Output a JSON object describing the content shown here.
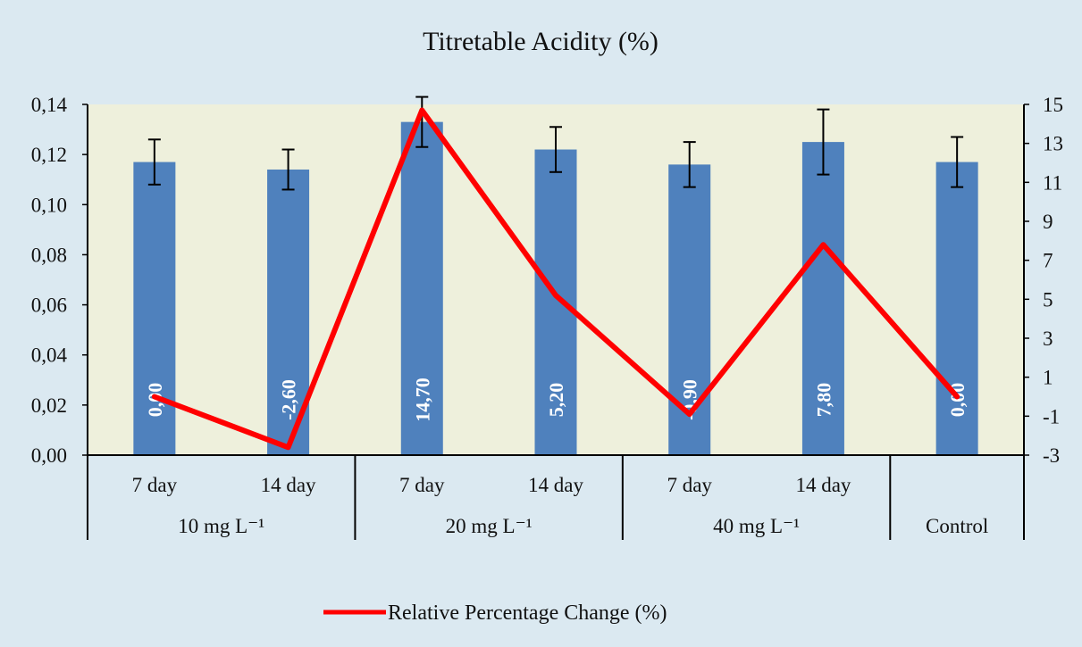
{
  "chart_data": {
    "type": "bar",
    "title": "Titretable Acidity (%)",
    "categories": [
      {
        "sub": "7 day",
        "group": "10 mg L⁻¹"
      },
      {
        "sub": "14 day",
        "group": "10 mg L⁻¹"
      },
      {
        "sub": "7 day",
        "group": "20 mg L⁻¹"
      },
      {
        "sub": "14 day",
        "group": "20 mg L⁻¹"
      },
      {
        "sub": "7 day",
        "group": "40 mg L⁻¹"
      },
      {
        "sub": "14 day",
        "group": "40 mg L⁻¹"
      },
      {
        "sub": "",
        "group": "Control"
      }
    ],
    "groups": [
      "10 mg L⁻¹",
      "20 mg L⁻¹",
      "40 mg L⁻¹",
      "Control"
    ],
    "bars": {
      "values": [
        0.117,
        0.114,
        0.133,
        0.122,
        0.116,
        0.125,
        0.117
      ],
      "errors": [
        0.009,
        0.008,
        0.01,
        0.009,
        0.009,
        0.013,
        0.01
      ],
      "data_labels": [
        "0,00",
        "-2,60",
        "14,70",
        "5,20",
        "-0,90",
        "7,80",
        "0,00"
      ],
      "color": "#4f81bd"
    },
    "line": {
      "name": "Relative Percentage Change (%)",
      "values": [
        0.0,
        -2.6,
        14.7,
        5.2,
        -0.9,
        7.8,
        0.0
      ],
      "axis": "right",
      "color": "#ff0000"
    },
    "y_left": {
      "min": 0,
      "max": 0.14,
      "ticks": [
        0,
        0.02,
        0.04,
        0.06,
        0.08,
        0.1,
        0.12,
        0.14
      ],
      "tick_labels": [
        "0,00",
        "0,02",
        "0,04",
        "0,06",
        "0,08",
        "0,10",
        "0,12",
        "0,14"
      ]
    },
    "y_right": {
      "min": -3,
      "max": 15,
      "ticks": [
        -3,
        -1,
        1,
        3,
        5,
        7,
        9,
        11,
        13,
        15
      ],
      "tick_labels": [
        "-3",
        "-1",
        "1",
        "3",
        "5",
        "7",
        "9",
        "11",
        "13",
        "15"
      ]
    },
    "legend_position": "bottom",
    "plot_background": "#eef0dc",
    "background": "#dbe9f1",
    "grid": false
  }
}
